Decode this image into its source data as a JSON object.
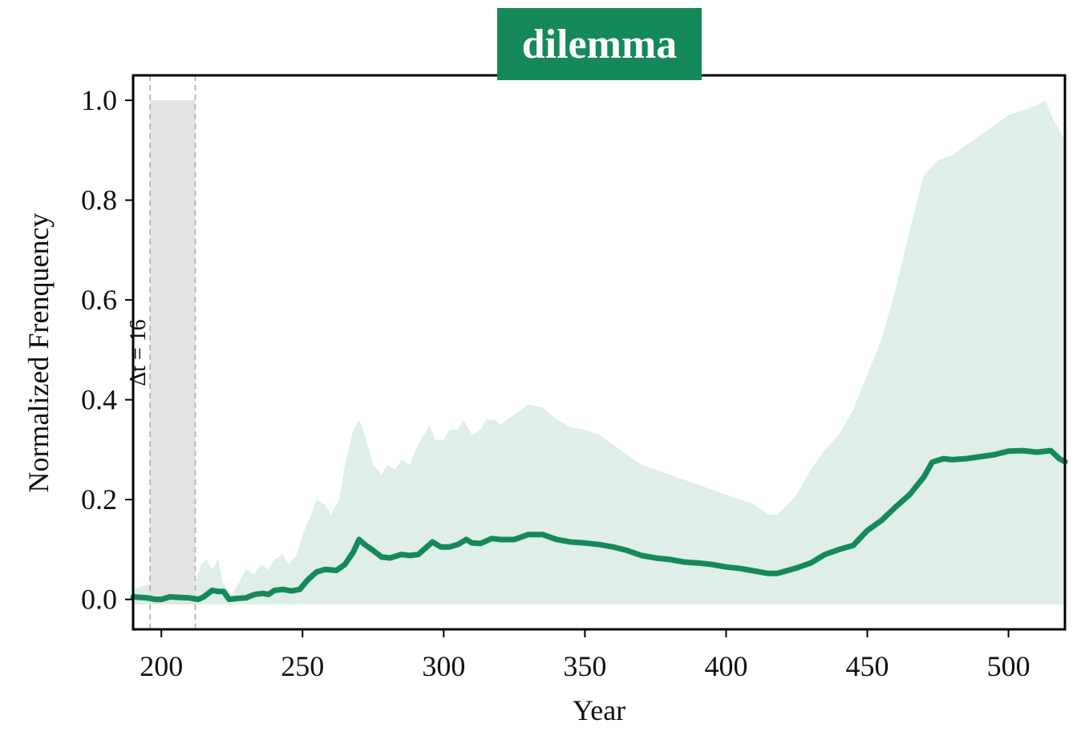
{
  "chart_data": {
    "type": "line",
    "title": "dilemma",
    "xlabel": "Year",
    "ylabel": "Normalized Frenquency",
    "xlim": [
      190,
      520
    ],
    "ylim": [
      -0.06,
      1.05
    ],
    "xticks": [
      200,
      250,
      300,
      350,
      400,
      450,
      500
    ],
    "yticks": [
      0.0,
      0.2,
      0.4,
      0.6,
      0.8,
      1.0
    ],
    "xtick_labels": [
      "200",
      "250",
      "300",
      "350",
      "400",
      "450",
      "500"
    ],
    "ytick_labels": [
      "0.0",
      "0.2",
      "0.4",
      "0.6",
      "0.8",
      "1.0"
    ],
    "grid": false,
    "colors": {
      "line": "#16895a",
      "band": "#dfeee8",
      "title_bg": "#16895a",
      "shade": "#e3e3e3",
      "dash": "#bbbbbb"
    },
    "highlight": {
      "x_start": 196,
      "x_end": 212,
      "y_top": 1.0,
      "label": "Δt = 16"
    },
    "band_base": -0.01,
    "band_upper": [
      [
        190,
        0.02
      ],
      [
        195,
        0.03
      ],
      [
        200,
        0.02
      ],
      [
        205,
        0.03
      ],
      [
        210,
        0.04
      ],
      [
        212,
        0.03
      ],
      [
        214,
        0.07
      ],
      [
        216,
        0.08
      ],
      [
        218,
        0.06
      ],
      [
        220,
        0.08
      ],
      [
        222,
        0.03
      ],
      [
        225,
        0.01
      ],
      [
        228,
        0.04
      ],
      [
        230,
        0.06
      ],
      [
        233,
        0.05
      ],
      [
        235,
        0.07
      ],
      [
        238,
        0.06
      ],
      [
        240,
        0.08
      ],
      [
        243,
        0.09
      ],
      [
        245,
        0.07
      ],
      [
        248,
        0.09
      ],
      [
        250,
        0.13
      ],
      [
        253,
        0.17
      ],
      [
        255,
        0.2
      ],
      [
        258,
        0.19
      ],
      [
        260,
        0.17
      ],
      [
        263,
        0.2
      ],
      [
        265,
        0.27
      ],
      [
        268,
        0.34
      ],
      [
        270,
        0.36
      ],
      [
        272,
        0.33
      ],
      [
        275,
        0.27
      ],
      [
        278,
        0.25
      ],
      [
        280,
        0.27
      ],
      [
        283,
        0.26
      ],
      [
        285,
        0.28
      ],
      [
        288,
        0.27
      ],
      [
        290,
        0.3
      ],
      [
        293,
        0.33
      ],
      [
        295,
        0.35
      ],
      [
        297,
        0.32
      ],
      [
        300,
        0.32
      ],
      [
        302,
        0.34
      ],
      [
        305,
        0.34
      ],
      [
        307,
        0.36
      ],
      [
        310,
        0.33
      ],
      [
        313,
        0.34
      ],
      [
        315,
        0.36
      ],
      [
        318,
        0.36
      ],
      [
        320,
        0.35
      ],
      [
        325,
        0.37
      ],
      [
        330,
        0.39
      ],
      [
        335,
        0.385
      ],
      [
        340,
        0.36
      ],
      [
        345,
        0.345
      ],
      [
        350,
        0.34
      ],
      [
        355,
        0.33
      ],
      [
        360,
        0.31
      ],
      [
        365,
        0.29
      ],
      [
        370,
        0.27
      ],
      [
        375,
        0.26
      ],
      [
        380,
        0.25
      ],
      [
        385,
        0.24
      ],
      [
        390,
        0.23
      ],
      [
        395,
        0.22
      ],
      [
        400,
        0.21
      ],
      [
        405,
        0.2
      ],
      [
        410,
        0.19
      ],
      [
        415,
        0.17
      ],
      [
        418,
        0.17
      ],
      [
        420,
        0.18
      ],
      [
        425,
        0.21
      ],
      [
        430,
        0.26
      ],
      [
        435,
        0.3
      ],
      [
        440,
        0.33
      ],
      [
        445,
        0.38
      ],
      [
        450,
        0.45
      ],
      [
        455,
        0.52
      ],
      [
        460,
        0.62
      ],
      [
        465,
        0.74
      ],
      [
        470,
        0.85
      ],
      [
        475,
        0.88
      ],
      [
        480,
        0.89
      ],
      [
        485,
        0.91
      ],
      [
        490,
        0.93
      ],
      [
        495,
        0.95
      ],
      [
        500,
        0.97
      ],
      [
        505,
        0.98
      ],
      [
        510,
        0.99
      ],
      [
        513,
        1.0
      ],
      [
        516,
        0.96
      ],
      [
        520,
        0.92
      ]
    ],
    "series": [
      {
        "name": "",
        "points": [
          [
            190,
            0.005
          ],
          [
            195,
            0.003
          ],
          [
            198,
            0.0
          ],
          [
            200,
            0.0
          ],
          [
            203,
            0.005
          ],
          [
            206,
            0.004
          ],
          [
            210,
            0.003
          ],
          [
            213,
            0.0
          ],
          [
            215,
            0.005
          ],
          [
            218,
            0.018
          ],
          [
            220,
            0.016
          ],
          [
            222,
            0.016
          ],
          [
            224,
            0.0
          ],
          [
            227,
            0.002
          ],
          [
            230,
            0.003
          ],
          [
            233,
            0.01
          ],
          [
            236,
            0.012
          ],
          [
            238,
            0.01
          ],
          [
            240,
            0.018
          ],
          [
            243,
            0.02
          ],
          [
            246,
            0.017
          ],
          [
            249,
            0.02
          ],
          [
            252,
            0.04
          ],
          [
            255,
            0.055
          ],
          [
            258,
            0.06
          ],
          [
            262,
            0.058
          ],
          [
            265,
            0.07
          ],
          [
            268,
            0.095
          ],
          [
            270,
            0.12
          ],
          [
            272,
            0.11
          ],
          [
            275,
            0.098
          ],
          [
            278,
            0.085
          ],
          [
            281,
            0.083
          ],
          [
            285,
            0.09
          ],
          [
            288,
            0.088
          ],
          [
            291,
            0.09
          ],
          [
            294,
            0.105
          ],
          [
            296,
            0.115
          ],
          [
            299,
            0.105
          ],
          [
            302,
            0.105
          ],
          [
            305,
            0.11
          ],
          [
            308,
            0.12
          ],
          [
            310,
            0.113
          ],
          [
            313,
            0.112
          ],
          [
            317,
            0.122
          ],
          [
            320,
            0.12
          ],
          [
            325,
            0.12
          ],
          [
            330,
            0.13
          ],
          [
            335,
            0.13
          ],
          [
            340,
            0.12
          ],
          [
            345,
            0.115
          ],
          [
            350,
            0.113
          ],
          [
            355,
            0.11
          ],
          [
            360,
            0.105
          ],
          [
            365,
            0.098
          ],
          [
            370,
            0.088
          ],
          [
            375,
            0.083
          ],
          [
            380,
            0.08
          ],
          [
            385,
            0.075
          ],
          [
            390,
            0.073
          ],
          [
            395,
            0.07
          ],
          [
            400,
            0.065
          ],
          [
            405,
            0.062
          ],
          [
            410,
            0.057
          ],
          [
            415,
            0.052
          ],
          [
            418,
            0.052
          ],
          [
            420,
            0.055
          ],
          [
            425,
            0.063
          ],
          [
            430,
            0.073
          ],
          [
            435,
            0.09
          ],
          [
            440,
            0.1
          ],
          [
            445,
            0.108
          ],
          [
            450,
            0.138
          ],
          [
            455,
            0.158
          ],
          [
            460,
            0.185
          ],
          [
            465,
            0.21
          ],
          [
            470,
            0.245
          ],
          [
            473,
            0.275
          ],
          [
            477,
            0.282
          ],
          [
            480,
            0.28
          ],
          [
            485,
            0.282
          ],
          [
            490,
            0.286
          ],
          [
            495,
            0.29
          ],
          [
            500,
            0.297
          ],
          [
            505,
            0.298
          ],
          [
            510,
            0.295
          ],
          [
            515,
            0.298
          ],
          [
            518,
            0.282
          ],
          [
            520,
            0.276
          ]
        ]
      }
    ]
  }
}
